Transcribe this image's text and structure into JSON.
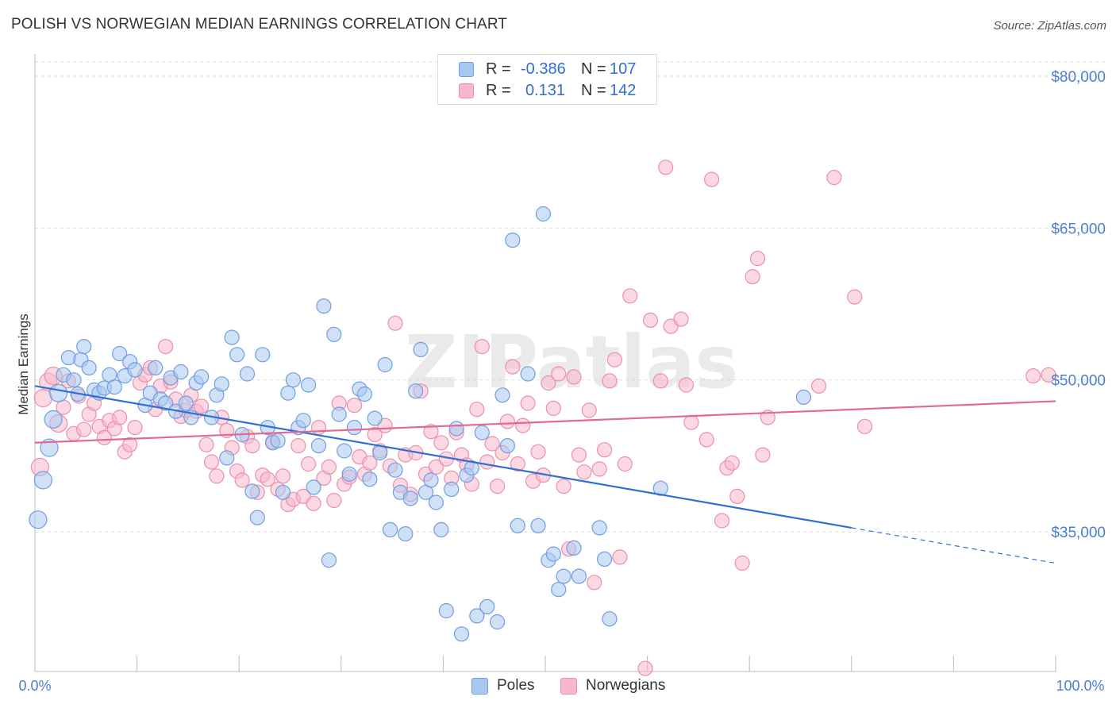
{
  "header": {
    "title": "POLISH VS NORWEGIAN MEDIAN EARNINGS CORRELATION CHART",
    "source": "Source: ZipAtlas.com"
  },
  "watermark": "ZIPatlas",
  "legend": {
    "r_label": "R =",
    "n_label": "N =",
    "rows": [
      {
        "series": "Poles",
        "r": "-0.386",
        "n": "107",
        "color": "#a9c8f0"
      },
      {
        "series": "Norwegians",
        "r": "0.131",
        "n": "142",
        "color": "#f7b8cb"
      }
    ]
  },
  "bottom_legend": [
    {
      "label": "Poles",
      "color": "#a9c8f0"
    },
    {
      "label": "Norwegians",
      "color": "#f7b8cb"
    }
  ],
  "colors": {
    "poles_fill": "#a9c8f0",
    "poles_stroke": "#6d9fe0",
    "poles_line": "#2e6fd6",
    "norwegians_fill": "#f7b8cb",
    "norwegians_stroke": "#ec8fac",
    "norwegians_line": "#e06a92",
    "tick_label": "#4a7fd0",
    "grid": "#dddddd"
  },
  "chart_data": {
    "type": "scatter",
    "title": "POLISH VS NORWEGIAN MEDIAN EARNINGS CORRELATION CHART",
    "xlabel": "",
    "ylabel": "Median Earnings",
    "xlim": [
      0,
      100
    ],
    "ylim": [
      20000,
      82000
    ],
    "x_tick_labels": [
      "0.0%",
      "100.0%"
    ],
    "y_ticks": [
      {
        "value": 35000,
        "label": "$35,000"
      },
      {
        "value": 50000,
        "label": "$50,000"
      },
      {
        "value": 65000,
        "label": "$65,000"
      },
      {
        "value": 80000,
        "label": "$80,000"
      }
    ],
    "grid": "horizontal dashed",
    "legend_position": "top-center",
    "series": [
      {
        "name": "Poles",
        "r": -0.386,
        "n": 107,
        "trend": {
          "x0": 0,
          "y0": 49400,
          "x1": 80,
          "y1": 35400,
          "dashed_to_x": 100,
          "dashed_to_y": 31900
        },
        "points": [
          [
            0.3,
            36200
          ],
          [
            0.8,
            40100
          ],
          [
            1.4,
            43300
          ],
          [
            1.8,
            46100
          ],
          [
            2.3,
            48700
          ],
          [
            2.8,
            50500
          ],
          [
            3.3,
            52200
          ],
          [
            3.8,
            50000
          ],
          [
            4.2,
            48600
          ],
          [
            4.5,
            52000
          ],
          [
            4.8,
            53300
          ],
          [
            5.3,
            51200
          ],
          [
            5.8,
            49000
          ],
          [
            6.3,
            48700
          ],
          [
            6.8,
            49200
          ],
          [
            7.3,
            50500
          ],
          [
            7.8,
            49300
          ],
          [
            8.3,
            52600
          ],
          [
            8.8,
            50400
          ],
          [
            9.3,
            51800
          ],
          [
            9.8,
            51000
          ],
          [
            10.8,
            47500
          ],
          [
            11.3,
            48700
          ],
          [
            11.8,
            51200
          ],
          [
            12.3,
            48100
          ],
          [
            12.8,
            47700
          ],
          [
            13.3,
            50200
          ],
          [
            13.8,
            46900
          ],
          [
            14.3,
            50800
          ],
          [
            14.8,
            47700
          ],
          [
            15.3,
            46300
          ],
          [
            15.8,
            49700
          ],
          [
            16.3,
            50300
          ],
          [
            17.3,
            46300
          ],
          [
            17.8,
            48500
          ],
          [
            18.3,
            49600
          ],
          [
            18.8,
            42300
          ],
          [
            19.3,
            54200
          ],
          [
            19.8,
            52500
          ],
          [
            20.3,
            44600
          ],
          [
            20.8,
            50600
          ],
          [
            21.3,
            39000
          ],
          [
            21.8,
            36400
          ],
          [
            22.3,
            52500
          ],
          [
            22.8,
            45300
          ],
          [
            23.3,
            43800
          ],
          [
            23.8,
            44000
          ],
          [
            24.3,
            38900
          ],
          [
            24.8,
            48700
          ],
          [
            25.3,
            50000
          ],
          [
            25.8,
            45300
          ],
          [
            26.3,
            46000
          ],
          [
            26.8,
            49500
          ],
          [
            27.3,
            39400
          ],
          [
            27.8,
            43500
          ],
          [
            28.3,
            57300
          ],
          [
            28.8,
            32200
          ],
          [
            29.3,
            54500
          ],
          [
            29.8,
            46600
          ],
          [
            30.3,
            43000
          ],
          [
            30.8,
            40700
          ],
          [
            31.3,
            45300
          ],
          [
            31.8,
            49100
          ],
          [
            32.3,
            48600
          ],
          [
            32.8,
            40200
          ],
          [
            33.3,
            46200
          ],
          [
            33.8,
            42800
          ],
          [
            34.3,
            51500
          ],
          [
            34.8,
            35200
          ],
          [
            35.3,
            41100
          ],
          [
            35.8,
            38900
          ],
          [
            36.3,
            34800
          ],
          [
            36.8,
            38300
          ],
          [
            37.3,
            48900
          ],
          [
            37.8,
            53000
          ],
          [
            38.3,
            38900
          ],
          [
            38.8,
            40100
          ],
          [
            39.3,
            37900
          ],
          [
            39.8,
            35200
          ],
          [
            40.3,
            27200
          ],
          [
            40.8,
            39200
          ],
          [
            41.3,
            45200
          ],
          [
            41.8,
            24900
          ],
          [
            42.3,
            40600
          ],
          [
            42.8,
            41300
          ],
          [
            43.3,
            26700
          ],
          [
            43.8,
            44800
          ],
          [
            44.3,
            27600
          ],
          [
            45.3,
            26100
          ],
          [
            45.8,
            48500
          ],
          [
            46.3,
            43500
          ],
          [
            46.8,
            63800
          ],
          [
            47.3,
            35600
          ],
          [
            48.3,
            50600
          ],
          [
            49.3,
            35600
          ],
          [
            49.8,
            66400
          ],
          [
            50.3,
            32200
          ],
          [
            50.8,
            32800
          ],
          [
            51.3,
            29300
          ],
          [
            51.8,
            30600
          ],
          [
            52.8,
            33400
          ],
          [
            53.3,
            30600
          ],
          [
            55.3,
            35400
          ],
          [
            55.8,
            32300
          ],
          [
            56.3,
            26400
          ],
          [
            61.3,
            39300
          ],
          [
            75.3,
            48300
          ]
        ]
      },
      {
        "name": "Norwegians",
        "r": 0.131,
        "n": 142,
        "trend": {
          "x0": 0,
          "y0": 43800,
          "x1": 100,
          "y1": 47900
        },
        "points": [
          [
            0.5,
            41400
          ],
          [
            0.8,
            48200
          ],
          [
            1.3,
            49800
          ],
          [
            1.8,
            50400
          ],
          [
            2.3,
            45700
          ],
          [
            2.8,
            47300
          ],
          [
            3.3,
            49900
          ],
          [
            3.8,
            44700
          ],
          [
            4.3,
            48400
          ],
          [
            4.8,
            45100
          ],
          [
            5.3,
            46600
          ],
          [
            5.8,
            47700
          ],
          [
            6.3,
            45400
          ],
          [
            6.8,
            44300
          ],
          [
            7.3,
            46000
          ],
          [
            7.8,
            45200
          ],
          [
            8.3,
            46300
          ],
          [
            8.8,
            42900
          ],
          [
            9.3,
            43600
          ],
          [
            9.8,
            45300
          ],
          [
            10.3,
            49700
          ],
          [
            10.8,
            50500
          ],
          [
            11.3,
            51200
          ],
          [
            11.8,
            47100
          ],
          [
            12.3,
            49400
          ],
          [
            12.8,
            53300
          ],
          [
            13.3,
            49800
          ],
          [
            13.8,
            48100
          ],
          [
            14.3,
            46400
          ],
          [
            14.8,
            47000
          ],
          [
            15.3,
            48500
          ],
          [
            15.8,
            46900
          ],
          [
            16.3,
            47400
          ],
          [
            16.8,
            43600
          ],
          [
            17.3,
            41900
          ],
          [
            17.8,
            40500
          ],
          [
            18.3,
            46300
          ],
          [
            18.8,
            45000
          ],
          [
            19.3,
            43300
          ],
          [
            19.8,
            41000
          ],
          [
            20.3,
            40100
          ],
          [
            20.8,
            44400
          ],
          [
            21.3,
            43500
          ],
          [
            21.8,
            38900
          ],
          [
            22.3,
            40600
          ],
          [
            22.8,
            40200
          ],
          [
            23.3,
            43900
          ],
          [
            23.8,
            39200
          ],
          [
            24.3,
            40500
          ],
          [
            24.8,
            37700
          ],
          [
            25.3,
            38200
          ],
          [
            25.8,
            43500
          ],
          [
            26.3,
            38500
          ],
          [
            26.8,
            41700
          ],
          [
            27.3,
            37800
          ],
          [
            27.8,
            45300
          ],
          [
            28.3,
            40300
          ],
          [
            28.8,
            41400
          ],
          [
            29.3,
            38100
          ],
          [
            29.8,
            47700
          ],
          [
            30.3,
            39700
          ],
          [
            30.8,
            40400
          ],
          [
            31.3,
            47500
          ],
          [
            31.8,
            42400
          ],
          [
            32.3,
            40700
          ],
          [
            32.8,
            41800
          ],
          [
            33.3,
            44600
          ],
          [
            33.8,
            43000
          ],
          [
            34.3,
            45500
          ],
          [
            34.8,
            41500
          ],
          [
            35.3,
            55600
          ],
          [
            35.8,
            39600
          ],
          [
            36.3,
            42600
          ],
          [
            36.8,
            38700
          ],
          [
            37.3,
            42800
          ],
          [
            37.8,
            48900
          ],
          [
            38.3,
            40700
          ],
          [
            38.8,
            44900
          ],
          [
            39.3,
            41400
          ],
          [
            39.8,
            43800
          ],
          [
            40.3,
            42200
          ],
          [
            40.8,
            40300
          ],
          [
            41.3,
            44800
          ],
          [
            41.8,
            42600
          ],
          [
            42.3,
            41600
          ],
          [
            42.8,
            39700
          ],
          [
            43.3,
            47100
          ],
          [
            43.8,
            53300
          ],
          [
            44.3,
            41900
          ],
          [
            44.8,
            43700
          ],
          [
            45.3,
            39500
          ],
          [
            45.8,
            42800
          ],
          [
            46.3,
            45900
          ],
          [
            46.8,
            51300
          ],
          [
            47.3,
            41700
          ],
          [
            47.8,
            45500
          ],
          [
            48.3,
            47700
          ],
          [
            48.8,
            40000
          ],
          [
            49.3,
            42900
          ],
          [
            49.8,
            40600
          ],
          [
            50.3,
            49700
          ],
          [
            50.8,
            47200
          ],
          [
            51.3,
            50600
          ],
          [
            51.8,
            39500
          ],
          [
            52.3,
            33300
          ],
          [
            52.8,
            50300
          ],
          [
            53.3,
            42600
          ],
          [
            53.8,
            40900
          ],
          [
            54.3,
            47000
          ],
          [
            54.8,
            30000
          ],
          [
            55.3,
            41200
          ],
          [
            55.8,
            43100
          ],
          [
            56.3,
            49900
          ],
          [
            56.8,
            52000
          ],
          [
            57.3,
            32500
          ],
          [
            57.8,
            41700
          ],
          [
            58.3,
            58300
          ],
          [
            59.8,
            21500
          ],
          [
            60.3,
            55900
          ],
          [
            61.3,
            49900
          ],
          [
            61.8,
            71000
          ],
          [
            62.3,
            55300
          ],
          [
            63.3,
            56000
          ],
          [
            63.8,
            49500
          ],
          [
            64.3,
            45800
          ],
          [
            65.8,
            44100
          ],
          [
            66.3,
            69800
          ],
          [
            67.3,
            36100
          ],
          [
            67.8,
            41300
          ],
          [
            68.3,
            41800
          ],
          [
            68.8,
            38500
          ],
          [
            69.3,
            31900
          ],
          [
            70.3,
            60200
          ],
          [
            70.8,
            62000
          ],
          [
            71.3,
            42600
          ],
          [
            71.8,
            46300
          ],
          [
            76.8,
            49400
          ],
          [
            78.3,
            70000
          ],
          [
            80.3,
            58200
          ],
          [
            81.3,
            45400
          ],
          [
            97.8,
            50400
          ],
          [
            99.3,
            50500
          ]
        ]
      }
    ]
  }
}
